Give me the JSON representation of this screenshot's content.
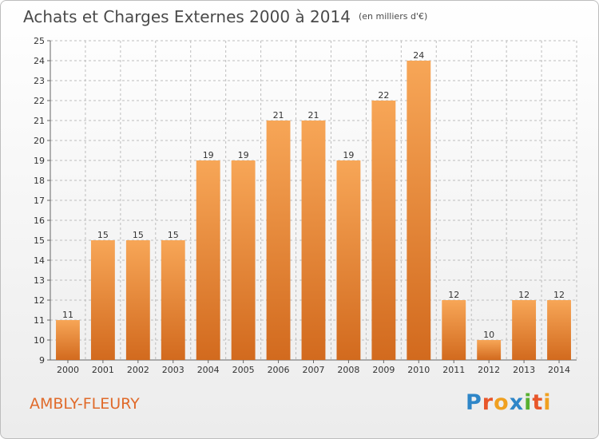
{
  "header": {
    "title": "Achats et Charges Externes 2000 à 2014",
    "unit_note": "(en milliers d'€)"
  },
  "footer": {
    "commune": "AMBLY-FLEURY",
    "brand": "Proxiti",
    "brand_letters": [
      {
        "char": "P",
        "color": "#2e86c8"
      },
      {
        "char": "r",
        "color": "#e8562a"
      },
      {
        "char": "o",
        "color": "#f0a020"
      },
      {
        "char": "x",
        "color": "#2e86c8"
      },
      {
        "char": "i",
        "color": "#58b030"
      },
      {
        "char": "t",
        "color": "#e8562a"
      },
      {
        "char": "i",
        "color": "#f0a020"
      }
    ]
  },
  "colors": {
    "bar_top": "#f7a657",
    "bar_bottom": "#d26a1e",
    "grid": "#bdbdbd",
    "text": "#333333"
  },
  "chart_data": {
    "type": "bar",
    "title": "Achats et Charges Externes 2000 à 2014",
    "subtitle": "(en milliers d'€)",
    "xlabel": "",
    "ylabel": "",
    "categories": [
      "2000",
      "2001",
      "2002",
      "2003",
      "2004",
      "2005",
      "2006",
      "2007",
      "2008",
      "2009",
      "2010",
      "2011",
      "2012",
      "2013",
      "2014"
    ],
    "values": [
      11,
      15,
      15,
      15,
      19,
      19,
      21,
      21,
      19,
      22,
      24,
      12,
      10,
      12,
      12
    ],
    "ylim": [
      9,
      25
    ],
    "yticks": [
      9,
      10,
      11,
      12,
      13,
      14,
      15,
      16,
      17,
      18,
      19,
      20,
      21,
      22,
      23,
      24,
      25
    ],
    "grid": true,
    "data_labels": true
  }
}
